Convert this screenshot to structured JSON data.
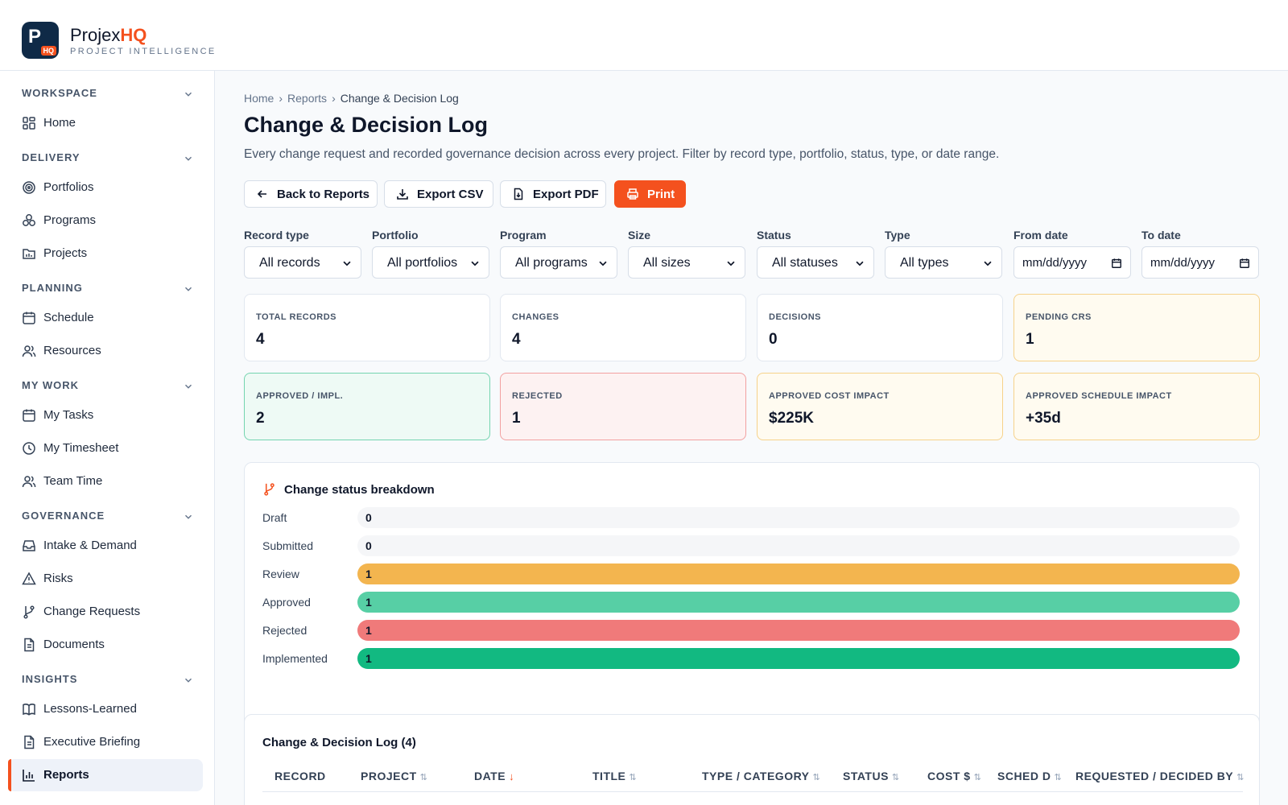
{
  "app": {
    "brand_main": "Projex",
    "brand_accent": "HQ",
    "tagline": "PROJECT INTELLIGENCE",
    "logo_letter": "P",
    "logo_badge": "HQ"
  },
  "sidebar": {
    "workspace": "WORKSPACE",
    "delivery": "DELIVERY",
    "planning": "PLANNING",
    "my_work": "MY WORK",
    "governance": "GOVERNANCE",
    "insights": "INSIGHTS",
    "items": {
      "home": "Home",
      "portfolios": "Portfolios",
      "programs": "Programs",
      "projects": "Projects",
      "schedule": "Schedule",
      "resources": "Resources",
      "my_tasks": "My Tasks",
      "my_timesheet": "My Timesheet",
      "team_time": "Team Time",
      "intake": "Intake & Demand",
      "risks": "Risks",
      "change_requests": "Change Requests",
      "documents": "Documents",
      "lessons": "Lessons-Learned",
      "briefing": "Executive Briefing",
      "reports": "Reports"
    }
  },
  "breadcrumb": {
    "home": "Home",
    "reports": "Reports",
    "current": "Change & Decision Log"
  },
  "page": {
    "title": "Change & Decision Log",
    "description": "Every change request and recorded governance decision across every project. Filter by record type, portfolio, status, type, or date range."
  },
  "actions": {
    "back": "Back to Reports",
    "csv": "Export CSV",
    "pdf": "Export PDF",
    "print": "Print"
  },
  "filters": {
    "record_type": {
      "label": "Record type",
      "value": "All records"
    },
    "portfolio": {
      "label": "Portfolio",
      "value": "All portfolios"
    },
    "program": {
      "label": "Program",
      "value": "All programs"
    },
    "size": {
      "label": "Size",
      "value": "All sizes"
    },
    "status": {
      "label": "Status",
      "value": "All statuses"
    },
    "type": {
      "label": "Type",
      "value": "All types"
    },
    "from": {
      "label": "From date",
      "placeholder": "mm/dd/yyyy"
    },
    "to": {
      "label": "To date",
      "placeholder": "mm/dd/yyyy"
    }
  },
  "kpis": {
    "total": {
      "label": "TOTAL RECORDS",
      "value": "4"
    },
    "changes": {
      "label": "CHANGES",
      "value": "4"
    },
    "decisions": {
      "label": "DECISIONS",
      "value": "0"
    },
    "pending": {
      "label": "PENDING CRS",
      "value": "1"
    },
    "approved": {
      "label": "APPROVED / IMPL.",
      "value": "2"
    },
    "rejected": {
      "label": "REJECTED",
      "value": "1"
    },
    "cost": {
      "label": "APPROVED COST IMPACT",
      "value": "$225K"
    },
    "schedule": {
      "label": "APPROVED SCHEDULE IMPACT",
      "value": "+35d"
    }
  },
  "breakdown": {
    "title": "Change status breakdown",
    "max": 1,
    "rows": [
      {
        "label": "Draft",
        "value": 0,
        "color": "#f5f6f8"
      },
      {
        "label": "Submitted",
        "value": 0,
        "color": "#f5f6f8"
      },
      {
        "label": "Review",
        "value": 1,
        "color": "#f3b54f"
      },
      {
        "label": "Approved",
        "value": 1,
        "color": "#57cfa5"
      },
      {
        "label": "Rejected",
        "value": 1,
        "color": "#f07a7a"
      },
      {
        "label": "Implemented",
        "value": 1,
        "color": "#12b981"
      }
    ]
  },
  "log": {
    "title": "Change & Decision Log (4)",
    "columns": {
      "record": "RECORD",
      "project": "PROJECT",
      "date": "DATE",
      "title": "TITLE",
      "type": "TYPE / CATEGORY",
      "status": "STATUS",
      "cost": "COST $",
      "sched": "SCHED D",
      "by": "REQUESTED / DECIDED BY"
    }
  },
  "colors": {
    "accent": "#f4511e",
    "navy": "#0f2a47"
  }
}
